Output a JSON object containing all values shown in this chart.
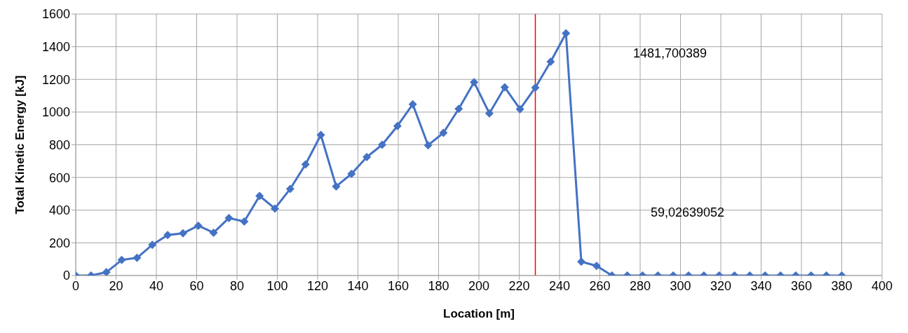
{
  "chart_data": {
    "type": "line",
    "xlabel": "Location [m]",
    "ylabel": "Total Kinetic Energy [kJ]",
    "x": [
      0,
      7.6,
      15.2,
      22.8,
      30.4,
      38,
      45.6,
      53.2,
      60.8,
      68.4,
      76,
      83.6,
      91.2,
      98.8,
      106.4,
      114,
      121.6,
      129.2,
      136.8,
      144.4,
      152,
      159.6,
      167.2,
      174.8,
      182.4,
      190,
      197.6,
      205.2,
      212.8,
      220.4,
      228,
      235.6,
      243.2,
      250.8,
      258.4,
      266,
      273.6,
      281.2,
      288.8,
      296.4,
      304,
      311.6,
      319.2,
      326.8,
      334.4,
      342,
      349.6,
      357.2,
      364.8,
      372.4,
      380
    ],
    "series": [
      {
        "color": "#4472c4",
        "values": [
          0,
          0,
          20,
          95,
          108,
          188,
          248,
          258,
          305,
          262,
          352,
          330,
          487,
          410,
          530,
          680,
          860,
          545,
          622,
          725,
          800,
          915,
          1048,
          797,
          873,
          1020,
          1183,
          992,
          1152,
          1018,
          1150,
          1308,
          1482,
          85,
          59,
          0,
          0,
          0,
          0,
          0,
          0,
          0,
          0,
          0,
          0,
          0,
          0,
          0,
          0,
          0,
          0
        ]
      }
    ],
    "xlim": [
      0,
      400
    ],
    "xticks": [
      0,
      20,
      40,
      60,
      80,
      100,
      120,
      140,
      160,
      180,
      200,
      220,
      240,
      260,
      280,
      300,
      320,
      340,
      360,
      380,
      400
    ],
    "ylim": [
      0,
      1600
    ],
    "yticks": [
      0,
      200,
      400,
      600,
      800,
      1000,
      1200,
      1400,
      1600
    ],
    "grid": true,
    "marker": "diamond",
    "line_style": "solid",
    "legend": false,
    "ref_lines": [
      {
        "axis": "x",
        "value": 228,
        "color": "#ff0000"
      }
    ],
    "annotations": [
      "1481,700389",
      "59,02639052"
    ]
  }
}
